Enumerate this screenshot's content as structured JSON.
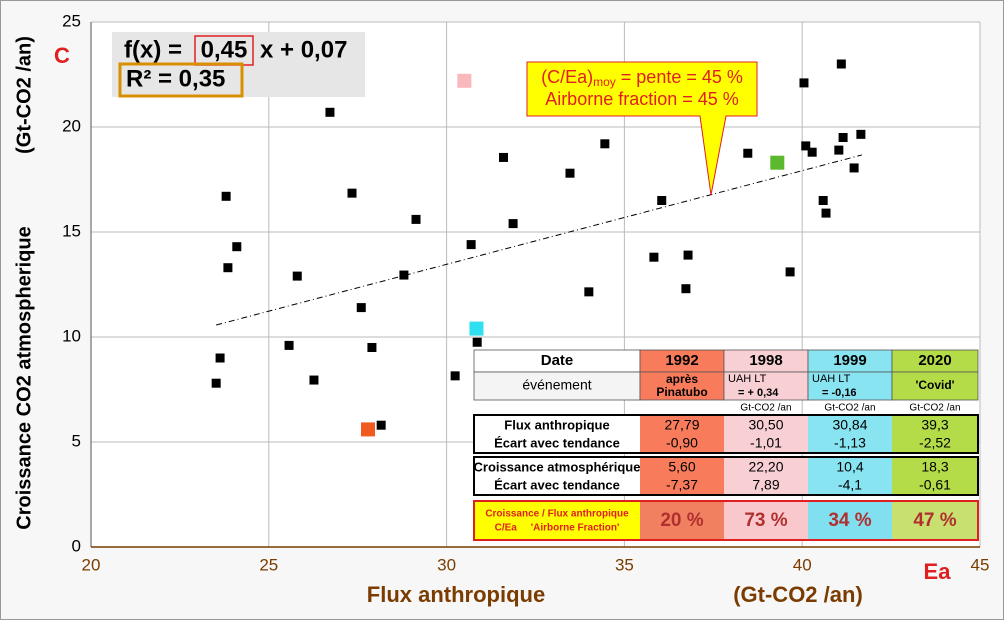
{
  "chart_data": {
    "type": "scatter",
    "xlim": [
      20,
      45
    ],
    "ylim": [
      0,
      25
    ],
    "xticks": [
      20,
      25,
      30,
      35,
      40,
      45
    ],
    "yticks": [
      0,
      5,
      10,
      15,
      20,
      25
    ],
    "grid": true,
    "x_label": "Flux anthropique",
    "x_unit": "(Gt-CO2 /an)",
    "x_symbol": "Ea",
    "y_label": "Croissance CO2 atmospherique",
    "y_unit": "(Gt-CO2 /an)",
    "y_symbol": "C",
    "series": [
      {
        "color": "#000000",
        "x": [
          23.52,
          23.63,
          23.8,
          23.85,
          24.1,
          25.57,
          25.8,
          26.27,
          26.72,
          27.34,
          27.6,
          27.9,
          28.16,
          28.8,
          29.14,
          30.24,
          30.69,
          30.86,
          31.6,
          31.87,
          33.47,
          34.0,
          34.45,
          35.83,
          36.05,
          36.73,
          36.79,
          38.47,
          39.66,
          40.05,
          40.1,
          40.28,
          40.59,
          40.67,
          41.03,
          41.1,
          41.15,
          41.46,
          41.65
        ],
        "values": [
          7.8,
          9.0,
          16.7,
          13.3,
          14.3,
          9.6,
          12.9,
          7.95,
          20.7,
          16.85,
          11.4,
          9.5,
          5.8,
          12.95,
          15.6,
          8.15,
          14.4,
          9.75,
          18.55,
          15.4,
          17.8,
          12.15,
          19.2,
          13.8,
          16.5,
          12.3,
          13.9,
          18.75,
          13.1,
          22.1,
          19.1,
          18.8,
          16.5,
          15.9,
          18.9,
          23.0,
          19.5,
          18.05,
          19.65
        ]
      },
      {
        "color": "#f05a20",
        "x": [
          27.79
        ],
        "values": [
          5.6
        ]
      },
      {
        "color": "#f8b8bc",
        "x": [
          30.5
        ],
        "values": [
          22.2
        ]
      },
      {
        "color": "#30e0f0",
        "x": [
          30.84
        ],
        "values": [
          10.4
        ]
      },
      {
        "color": "#5cb82c",
        "x": [
          39.3
        ],
        "values": [
          18.3
        ]
      }
    ],
    "trendline": {
      "x": [
        23.52,
        41.68
      ],
      "values": [
        10.57,
        18.67
      ]
    },
    "equation": {
      "prefix": "f(x) = ",
      "slope": "0,45",
      "suffix": "x + 0,07"
    },
    "r2": "R² = 0,35",
    "callout": {
      "main": "(C/Ea)",
      "sub": "moy",
      "rest": " = pente = 45 %",
      "line2": "Airborne fraction = 45 %"
    }
  },
  "table": {
    "columns": [
      "Date",
      "1992",
      "1998",
      "1999",
      "2020"
    ],
    "event_label": "événement",
    "events": [
      [
        "après",
        "Pinatubo"
      ],
      [
        "UAH LT",
        "= + 0,34"
      ],
      [
        "UAH LT",
        "= -0,16"
      ],
      [
        "'Covid'"
      ]
    ],
    "units": [
      "Gt-CO2 /an",
      "Gt-CO2 /an",
      "Gt-CO2 /an"
    ],
    "flux": {
      "labels": [
        "Flux anthropique",
        "Écart avec tendance"
      ],
      "values": [
        [
          "27,79",
          "-0,90"
        ],
        [
          "30,50",
          "-1,01"
        ],
        [
          "30,84",
          "-1,13"
        ],
        [
          "39,3",
          "-2,52"
        ]
      ]
    },
    "growth": {
      "labels": [
        "Croissance atmosphérique",
        "Écart avec tendance"
      ],
      "values": [
        [
          "5,60",
          "-7,37"
        ],
        [
          "22,20",
          "7,89"
        ],
        [
          "10,4",
          "-4,1"
        ],
        [
          "18,3",
          "-0,61"
        ]
      ]
    },
    "ratio": {
      "labels": [
        "Croissance / Flux anthropique",
        "C/Ea     'Airborne Fraction'"
      ],
      "values": [
        "20 %",
        "73 %",
        "34 %",
        "47 %"
      ]
    }
  }
}
